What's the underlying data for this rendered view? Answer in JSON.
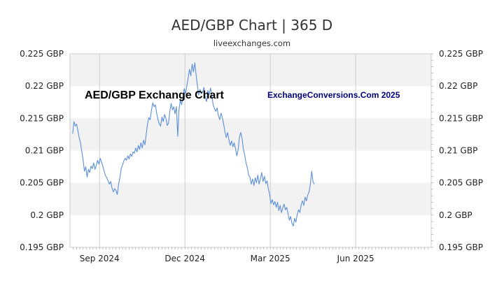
{
  "chart_data": {
    "type": "line",
    "title": "AED/GBP Chart | 365 D",
    "subtitle": "liveexchanges.com",
    "watermark_left": "AED/GBP Exchange Chart",
    "watermark_right": "ExchangeConversions.Com 2025",
    "ylim": [
      0.195,
      0.225
    ],
    "yticks": [
      0.225,
      0.22,
      0.215,
      0.21,
      0.205,
      0.2,
      0.195
    ],
    "ytick_labels": [
      "0.225 GBP",
      "0.22 GBP",
      "0.215 GBP",
      "0.21 GBP",
      "0.205 GBP",
      "0.2 GBP",
      "0.195 GBP"
    ],
    "xlim": [
      -4,
      106
    ],
    "xticks": [
      {
        "label": "Sep 2024",
        "x": 5
      },
      {
        "label": "Dec 2024",
        "x": 31
      },
      {
        "label": "Mar 2025",
        "x": 57
      },
      {
        "label": "Jun 2025",
        "x": 83
      }
    ],
    "grid": true,
    "line_color": "#5b8fd8",
    "band_color": "#f2f2f2",
    "series": [
      {
        "values": [
          [
            -3.2,
            0.2126
          ],
          [
            -2.8,
            0.2145
          ],
          [
            -2.4,
            0.2138
          ],
          [
            -2.0,
            0.2141
          ],
          [
            -1.6,
            0.2131
          ],
          [
            -1.2,
            0.212
          ],
          [
            -0.8,
            0.2112
          ],
          [
            -0.4,
            0.2098
          ],
          [
            0.0,
            0.2085
          ],
          [
            0.4,
            0.2068
          ],
          [
            0.8,
            0.2075
          ],
          [
            1.2,
            0.2059
          ],
          [
            1.6,
            0.2071
          ],
          [
            2.0,
            0.2066
          ],
          [
            2.4,
            0.2076
          ],
          [
            2.8,
            0.2072
          ],
          [
            3.2,
            0.2081
          ],
          [
            3.6,
            0.2071
          ],
          [
            4.0,
            0.2077
          ],
          [
            4.4,
            0.2085
          ],
          [
            4.8,
            0.2079
          ],
          [
            5.2,
            0.2088
          ],
          [
            5.6,
            0.2082
          ],
          [
            6.0,
            0.2076
          ],
          [
            6.4,
            0.2068
          ],
          [
            6.8,
            0.2061
          ],
          [
            7.2,
            0.2058
          ],
          [
            7.6,
            0.2053
          ],
          [
            8.0,
            0.2048
          ],
          [
            8.4,
            0.2052
          ],
          [
            8.8,
            0.2042
          ],
          [
            9.2,
            0.2036
          ],
          [
            9.6,
            0.2041
          ],
          [
            10.0,
            0.2038
          ],
          [
            10.4,
            0.2032
          ],
          [
            10.8,
            0.2048
          ],
          [
            11.2,
            0.2058
          ],
          [
            11.6,
            0.2072
          ],
          [
            12.0,
            0.2078
          ],
          [
            12.4,
            0.2084
          ],
          [
            12.8,
            0.2088
          ],
          [
            13.2,
            0.2085
          ],
          [
            13.6,
            0.2092
          ],
          [
            14.0,
            0.2087
          ],
          [
            14.4,
            0.2095
          ],
          [
            14.8,
            0.2091
          ],
          [
            15.2,
            0.2098
          ],
          [
            15.6,
            0.2096
          ],
          [
            16.0,
            0.2104
          ],
          [
            16.4,
            0.2098
          ],
          [
            16.8,
            0.2108
          ],
          [
            17.2,
            0.2102
          ],
          [
            17.6,
            0.2112
          ],
          [
            18.0,
            0.2104
          ],
          [
            18.4,
            0.2116
          ],
          [
            18.8,
            0.2109
          ],
          [
            19.2,
            0.2125
          ],
          [
            19.6,
            0.2141
          ],
          [
            20.0,
            0.2151
          ],
          [
            20.4,
            0.2148
          ],
          [
            20.8,
            0.2162
          ],
          [
            21.2,
            0.2174
          ],
          [
            21.6,
            0.2168
          ],
          [
            22.0,
            0.2171
          ],
          [
            22.4,
            0.2158
          ],
          [
            22.8,
            0.2148
          ],
          [
            23.2,
            0.2141
          ],
          [
            23.6,
            0.2138
          ],
          [
            24.0,
            0.2152
          ],
          [
            24.4,
            0.2145
          ],
          [
            24.8,
            0.2156
          ],
          [
            25.2,
            0.215
          ],
          [
            25.6,
            0.2139
          ],
          [
            26.0,
            0.2142
          ],
          [
            26.4,
            0.2161
          ],
          [
            26.8,
            0.2173
          ],
          [
            27.2,
            0.2163
          ],
          [
            27.6,
            0.2168
          ],
          [
            28.0,
            0.2157
          ],
          [
            28.4,
            0.2168
          ],
          [
            28.8,
            0.2122
          ],
          [
            29.2,
            0.2163
          ],
          [
            29.6,
            0.2178
          ],
          [
            30.0,
            0.2171
          ],
          [
            30.4,
            0.2183
          ],
          [
            30.8,
            0.2196
          ],
          [
            31.2,
            0.2188
          ],
          [
            31.6,
            0.2201
          ],
          [
            32.0,
            0.2213
          ],
          [
            32.4,
            0.2226
          ],
          [
            32.8,
            0.2216
          ],
          [
            33.2,
            0.2234
          ],
          [
            33.6,
            0.2222
          ],
          [
            34.0,
            0.2236
          ],
          [
            34.4,
            0.2218
          ],
          [
            34.8,
            0.2201
          ],
          [
            35.2,
            0.2186
          ],
          [
            35.6,
            0.2195
          ],
          [
            36.0,
            0.2188
          ],
          [
            36.4,
            0.2191
          ],
          [
            36.8,
            0.2198
          ],
          [
            37.2,
            0.2182
          ],
          [
            37.6,
            0.2176
          ],
          [
            38.0,
            0.2193
          ],
          [
            38.4,
            0.2187
          ],
          [
            38.8,
            0.2197
          ],
          [
            39.2,
            0.2185
          ],
          [
            39.6,
            0.2171
          ],
          [
            40.0,
            0.2165
          ],
          [
            40.4,
            0.2161
          ],
          [
            40.8,
            0.2166
          ],
          [
            41.2,
            0.2154
          ],
          [
            41.6,
            0.2148
          ],
          [
            42.0,
            0.2158
          ],
          [
            42.4,
            0.2151
          ],
          [
            42.8,
            0.2141
          ],
          [
            43.2,
            0.2129
          ],
          [
            43.6,
            0.212
          ],
          [
            44.0,
            0.2128
          ],
          [
            44.4,
            0.2117
          ],
          [
            44.8,
            0.2108
          ],
          [
            45.2,
            0.2115
          ],
          [
            45.6,
            0.2106
          ],
          [
            46.0,
            0.2112
          ],
          [
            46.4,
            0.2103
          ],
          [
            46.8,
            0.2092
          ],
          [
            47.2,
            0.2101
          ],
          [
            47.6,
            0.2121
          ],
          [
            48.0,
            0.2128
          ],
          [
            48.4,
            0.2119
          ],
          [
            48.8,
            0.2102
          ],
          [
            49.2,
            0.2093
          ],
          [
            49.6,
            0.2081
          ],
          [
            50.0,
            0.2074
          ],
          [
            50.4,
            0.2062
          ],
          [
            50.8,
            0.2059
          ],
          [
            51.2,
            0.2048
          ],
          [
            51.6,
            0.2056
          ],
          [
            52.0,
            0.2046
          ],
          [
            52.4,
            0.2058
          ],
          [
            52.8,
            0.205
          ],
          [
            53.2,
            0.2062
          ],
          [
            53.6,
            0.2048
          ],
          [
            54.0,
            0.2057
          ],
          [
            54.4,
            0.2066
          ],
          [
            54.8,
            0.2052
          ],
          [
            55.2,
            0.206
          ],
          [
            55.6,
            0.2049
          ],
          [
            56.0,
            0.2053
          ],
          [
            56.4,
            0.2041
          ],
          [
            56.8,
            0.2032
          ],
          [
            57.2,
            0.2018
          ],
          [
            57.6,
            0.2024
          ],
          [
            58.0,
            0.2016
          ],
          [
            58.4,
            0.2021
          ],
          [
            58.8,
            0.2012
          ],
          [
            59.2,
            0.202
          ],
          [
            59.6,
            0.2007
          ],
          [
            60.0,
            0.2015
          ],
          [
            60.4,
            0.2004
          ],
          [
            60.8,
            0.2011
          ],
          [
            61.2,
            0.2017
          ],
          [
            61.6,
            0.2008
          ],
          [
            62.0,
            0.2012
          ],
          [
            62.4,
            0.2002
          ],
          [
            62.8,
            0.1992
          ],
          [
            63.2,
            0.1998
          ],
          [
            63.6,
            0.1987
          ],
          [
            64.0,
            0.1983
          ],
          [
            64.4,
            0.1995
          ],
          [
            64.8,
            0.1989
          ],
          [
            65.2,
            0.2001
          ],
          [
            65.6,
            0.2008
          ],
          [
            66.0,
            0.2004
          ],
          [
            66.4,
            0.2016
          ],
          [
            66.8,
            0.2022
          ],
          [
            67.2,
            0.2015
          ],
          [
            67.6,
            0.2028
          ],
          [
            68.0,
            0.2022
          ],
          [
            68.4,
            0.2031
          ],
          [
            68.8,
            0.2036
          ],
          [
            69.2,
            0.2048
          ],
          [
            69.6,
            0.2068
          ],
          [
            70.0,
            0.2052
          ],
          [
            70.4,
            0.2048
          ]
        ]
      }
    ]
  }
}
